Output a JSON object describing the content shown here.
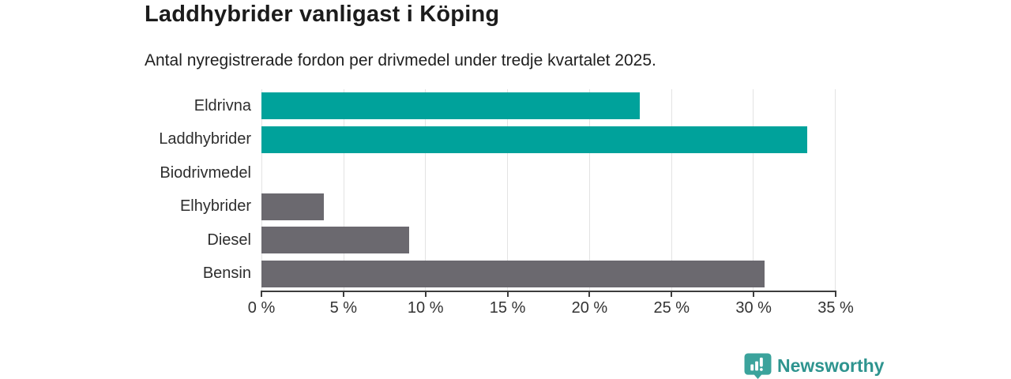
{
  "header": {
    "title": "Laddhybrider vanligast i Köping",
    "subtitle": "Antal nyregistrerade fordon per drivmedel under tredje kvartalet 2025."
  },
  "chart_data": {
    "type": "bar",
    "orientation": "horizontal",
    "title": "Laddhybrider vanligast i Köping",
    "subtitle": "Antal nyregistrerade fordon per drivmedel under tredje kvartalet 2025.",
    "categories": [
      "Eldrivna",
      "Laddhybrider",
      "Biodrivmedel",
      "Elhybrider",
      "Diesel",
      "Bensin"
    ],
    "values": [
      23.1,
      33.3,
      0,
      3.8,
      9.0,
      30.7
    ],
    "unit": "%",
    "xlim": [
      0,
      35
    ],
    "x_ticks": [
      0,
      5,
      10,
      15,
      20,
      25,
      30,
      35
    ],
    "x_tick_labels": [
      "0 %",
      "5 %",
      "10 %",
      "15 %",
      "20 %",
      "25 %",
      "30 %",
      "35 %"
    ],
    "grid": true,
    "legend": "none",
    "bar_colors": [
      "#00a29b",
      "#00a29b",
      "#6b696f",
      "#6b696f",
      "#6b696f",
      "#6b696f"
    ]
  },
  "colors": {
    "teal_bar": "#00a29b",
    "gray_bar": "#6b696f",
    "gridline": "#e3e3e3",
    "axis": "#3d3d3d",
    "text": "#1f1f1f",
    "brand_teal": "#2e948f",
    "brand_icon_teal": "#3ba39c"
  },
  "branding": {
    "logo_text": "Newsworthy",
    "logo_icon": "newsworthy-marker-bars-icon"
  }
}
